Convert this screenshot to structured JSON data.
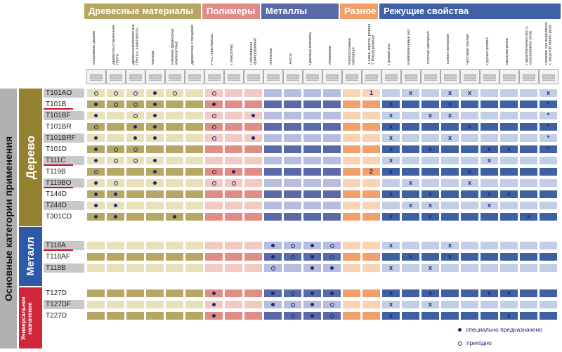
{
  "colors": {
    "wood": "#b7a764",
    "wood_light": "#e8e0b8",
    "poly": "#e08d86",
    "poly_light": "#f2c9c3",
    "metal": "#5a6aa8",
    "metal_light": "#b6bde0",
    "misc": "#f0a068",
    "misc_light": "#f9d4b4",
    "cut": "#3f61a4",
    "cut_light": "#c2cde6",
    "cat_main": "#b0b0b0",
    "cat_wood": "#938331",
    "cat_metal": "#2e59a8",
    "cat_univ": "#d2263a",
    "mark": "#1a2a70",
    "underline": "#c8102e"
  },
  "groups": [
    {
      "label": "Древесные материалы",
      "key": "wood"
    },
    {
      "label": "Полимеры",
      "key": "poly"
    },
    {
      "label": "Металлы",
      "key": "metal"
    },
    {
      "label": "Разное",
      "key": "misc"
    },
    {
      "label": "Режущие свойства",
      "key": "cut"
    }
  ],
  "columns": [
    {
      "label": "Массивное дерево",
      "group": "wood",
      "icon": "log-icon"
    },
    {
      "label": "Древесно-стружечная плита",
      "group": "wood",
      "icon": "particle-board-icon"
    },
    {
      "label": "Древесноволокнистые плиты с пластмассо-вым покрытием",
      "group": "wood",
      "icon": "coated-board-icon"
    },
    {
      "label": "Фанера",
      "group": "wood",
      "icon": "plywood-icon"
    },
    {
      "label": "Клееная древесина/ композитные древесные материалы",
      "group": "wood",
      "icon": "glued-wood-icon"
    },
    {
      "label": "Древесина с гвоздями",
      "group": "wood",
      "icon": "nailed-wood-icon"
    },
    {
      "label": "PVC пластмассы",
      "group": "poly",
      "icon": "pvc-icon"
    },
    {
      "label": "Плексиглас",
      "group": "poly",
      "icon": "plexiglass-icon"
    },
    {
      "label": "Пластмассы, армированные стекловолокном",
      "group": "poly",
      "icon": "fiber-plastic-icon"
    },
    {
      "label": "Металлы",
      "group": "metal",
      "icon": "metal-sheet-icon"
    },
    {
      "label": "Жесть",
      "group": "metal",
      "icon": "tin-icon"
    },
    {
      "label": "Цветные металлы",
      "group": "metal",
      "icon": "nonferrous-icon"
    },
    {
      "label": "Алюминий",
      "group": "metal",
      "icon": "aluminium-icon"
    },
    {
      "label": "Многослойный материал",
      "group": "misc",
      "icon": "multilayer-icon"
    },
    {
      "label": "1 Кожа, картон, резина 2 Изоляционные материалы",
      "group": "misc",
      "icon": "misc-material-icon"
    },
    {
      "label": "Прямой рез",
      "group": "cut",
      "icon": "straight-cut-icon"
    },
    {
      "label": "Криволинейный рез",
      "group": "cut",
      "icon": "curve-cut-icon"
    },
    {
      "label": "Толстый материал",
      "group": "cut",
      "icon": "thick-material-icon"
    },
    {
      "label": "Тонкий материал",
      "group": "cut",
      "icon": "thin-material-icon"
    },
    {
      "label": "Чистовой пропил",
      "group": "cut",
      "icon": "clean-cut-icon"
    },
    {
      "label": "Грубый пропил",
      "group": "cut",
      "icon": "rough-cut-icon"
    },
    {
      "label": "Быстрая резка",
      "group": "cut",
      "icon": "fast-cut-icon"
    },
    {
      "label": "Параллельный рез (с сохранением угла)",
      "group": "cut",
      "icon": "parallel-cut-icon"
    },
    {
      "label": "Резание без вырезания с защитой линии реза от стружки",
      "group": "cut",
      "icon": "splinter-free-icon"
    }
  ],
  "categories": [
    {
      "label": "Основные категории применения",
      "key": "main"
    },
    {
      "label": "Дерево",
      "key": "wood"
    },
    {
      "label": "Металл",
      "key": "metal"
    },
    {
      "label": "Универсальное назначение",
      "key": "univ"
    }
  ],
  "rows": [
    {
      "code": "T101AO",
      "underline": false,
      "marks": [
        "o",
        "o",
        "o",
        "d",
        "o",
        "",
        "o",
        "",
        "",
        "",
        "",
        "",
        "",
        "",
        "1",
        "",
        "x",
        "",
        "x",
        "x",
        "",
        "",
        "",
        "x"
      ]
    },
    {
      "code": "T101B",
      "underline": true,
      "marks": [
        "d",
        "o",
        "o",
        "d",
        "",
        "",
        "d",
        "",
        "",
        "",
        "",
        "",
        "",
        "",
        "",
        "x",
        "",
        "",
        "x",
        "",
        "",
        "",
        "",
        "*"
      ]
    },
    {
      "code": "T101BF",
      "underline": false,
      "marks": [
        "d",
        "",
        "o",
        "d",
        "",
        "",
        "o",
        "",
        "d",
        "",
        "",
        "",
        "",
        "",
        "",
        "x",
        "",
        "x",
        "x",
        "",
        "",
        "",
        "",
        "*"
      ]
    },
    {
      "code": "T101BR",
      "underline": false,
      "marks": [
        "o",
        "",
        "d",
        "d",
        "",
        "",
        "o",
        "",
        "",
        "",
        "",
        "",
        "",
        "",
        "",
        "x",
        "",
        "",
        "",
        "x",
        "",
        "",
        "",
        "*"
      ]
    },
    {
      "code": "T101BRF",
      "underline": false,
      "marks": [
        "d",
        "",
        "d",
        "d",
        "",
        "",
        "o",
        "",
        "d",
        "",
        "",
        "",
        "",
        "",
        "",
        "x",
        "",
        "",
        "x",
        "",
        "",
        "",
        "",
        "*"
      ]
    },
    {
      "code": "T101D",
      "underline": false,
      "marks": [
        "d",
        "o",
        "o",
        "",
        "",
        "",
        "",
        "",
        "",
        "",
        "",
        "",
        "",
        "",
        "",
        "x",
        "",
        "x",
        "",
        "",
        "x",
        "x",
        "",
        "*"
      ]
    },
    {
      "code": "T111C",
      "underline": true,
      "marks": [
        "d",
        "o",
        "o",
        "d",
        "",
        "",
        "",
        "",
        "",
        "",
        "",
        "",
        "",
        "",
        "",
        "x",
        "",
        "",
        "",
        "",
        "x",
        "",
        "",
        ""
      ]
    },
    {
      "code": "T119B",
      "underline": false,
      "marks": [
        "o",
        "",
        "",
        "d",
        "",
        "",
        "o",
        "d",
        "",
        "",
        "",
        "",
        "",
        "",
        "2",
        "x",
        "",
        "",
        "",
        "x",
        "",
        "",
        "",
        ""
      ]
    },
    {
      "code": "T119BO",
      "underline": true,
      "marks": [
        "d",
        "o",
        "",
        "d",
        "",
        "",
        "o",
        "o",
        "",
        "",
        "",
        "",
        "",
        "",
        "",
        "",
        "x",
        "",
        "",
        "x",
        "",
        "",
        "",
        ""
      ]
    },
    {
      "code": "T144D",
      "underline": false,
      "marks": [
        "d",
        "d",
        "",
        "",
        "",
        "",
        "",
        "",
        "",
        "",
        "",
        "",
        "",
        "",
        "",
        "x",
        "",
        "x",
        "",
        "",
        "x",
        "x",
        "",
        ""
      ]
    },
    {
      "code": "T244D",
      "underline": false,
      "marks": [
        "d",
        "d",
        "",
        "",
        "",
        "",
        "",
        "",
        "",
        "",
        "",
        "",
        "",
        "",
        "",
        "",
        "x",
        "x",
        "",
        "",
        "x",
        "",
        "",
        ""
      ]
    },
    {
      "code": "T301CD",
      "underline": false,
      "marks": [
        "d",
        "d",
        "",
        "",
        "d",
        "",
        "",
        "",
        "",
        "",
        "",
        "",
        "",
        "",
        "",
        "x",
        "",
        "x",
        "",
        "",
        "",
        "",
        "x",
        ""
      ]
    },
    {
      "code": "T118A",
      "underline": true,
      "marks": [
        "",
        "",
        "",
        "",
        "",
        "",
        "",
        "",
        "",
        "d",
        "o",
        "d",
        "o",
        "",
        "",
        "x",
        "",
        "",
        "x",
        "",
        "",
        "",
        "",
        ""
      ]
    },
    {
      "code": "T118AF",
      "underline": false,
      "marks": [
        "",
        "",
        "",
        "",
        "",
        "",
        "",
        "",
        "",
        "d",
        "o",
        "d",
        "o",
        "",
        "",
        "",
        "x",
        "",
        "x",
        "",
        "",
        "",
        "",
        ""
      ]
    },
    {
      "code": "T118B",
      "underline": false,
      "marks": [
        "",
        "",
        "",
        "",
        "",
        "",
        "",
        "",
        "",
        "o",
        "",
        "d",
        "d",
        "",
        "",
        "x",
        "",
        "x",
        "",
        "",
        "",
        "",
        "",
        ""
      ]
    },
    {
      "code": "T127D",
      "underline": false,
      "marks": [
        "",
        "",
        "",
        "",
        "",
        "",
        "d",
        "",
        "",
        "d",
        "o",
        "d",
        "d",
        "",
        "",
        "x",
        "",
        "x",
        "",
        "",
        "x",
        "x",
        "",
        ""
      ]
    },
    {
      "code": "T127DF",
      "underline": false,
      "marks": [
        "",
        "",
        "",
        "",
        "",
        "",
        "d",
        "",
        "",
        "d",
        "o",
        "d",
        "o",
        "",
        "",
        "x",
        "",
        "x",
        "",
        "",
        "",
        "",
        "",
        ""
      ]
    },
    {
      "code": "T227D",
      "underline": false,
      "marks": [
        "",
        "",
        "",
        "",
        "",
        "",
        "d",
        "",
        "",
        "",
        "o",
        "d",
        "o",
        "",
        "",
        "x",
        "",
        "",
        "",
        "",
        "",
        "x",
        "",
        ""
      ]
    }
  ],
  "legend": {
    "special": "специально предназначено",
    "suitable": "пригодно"
  }
}
